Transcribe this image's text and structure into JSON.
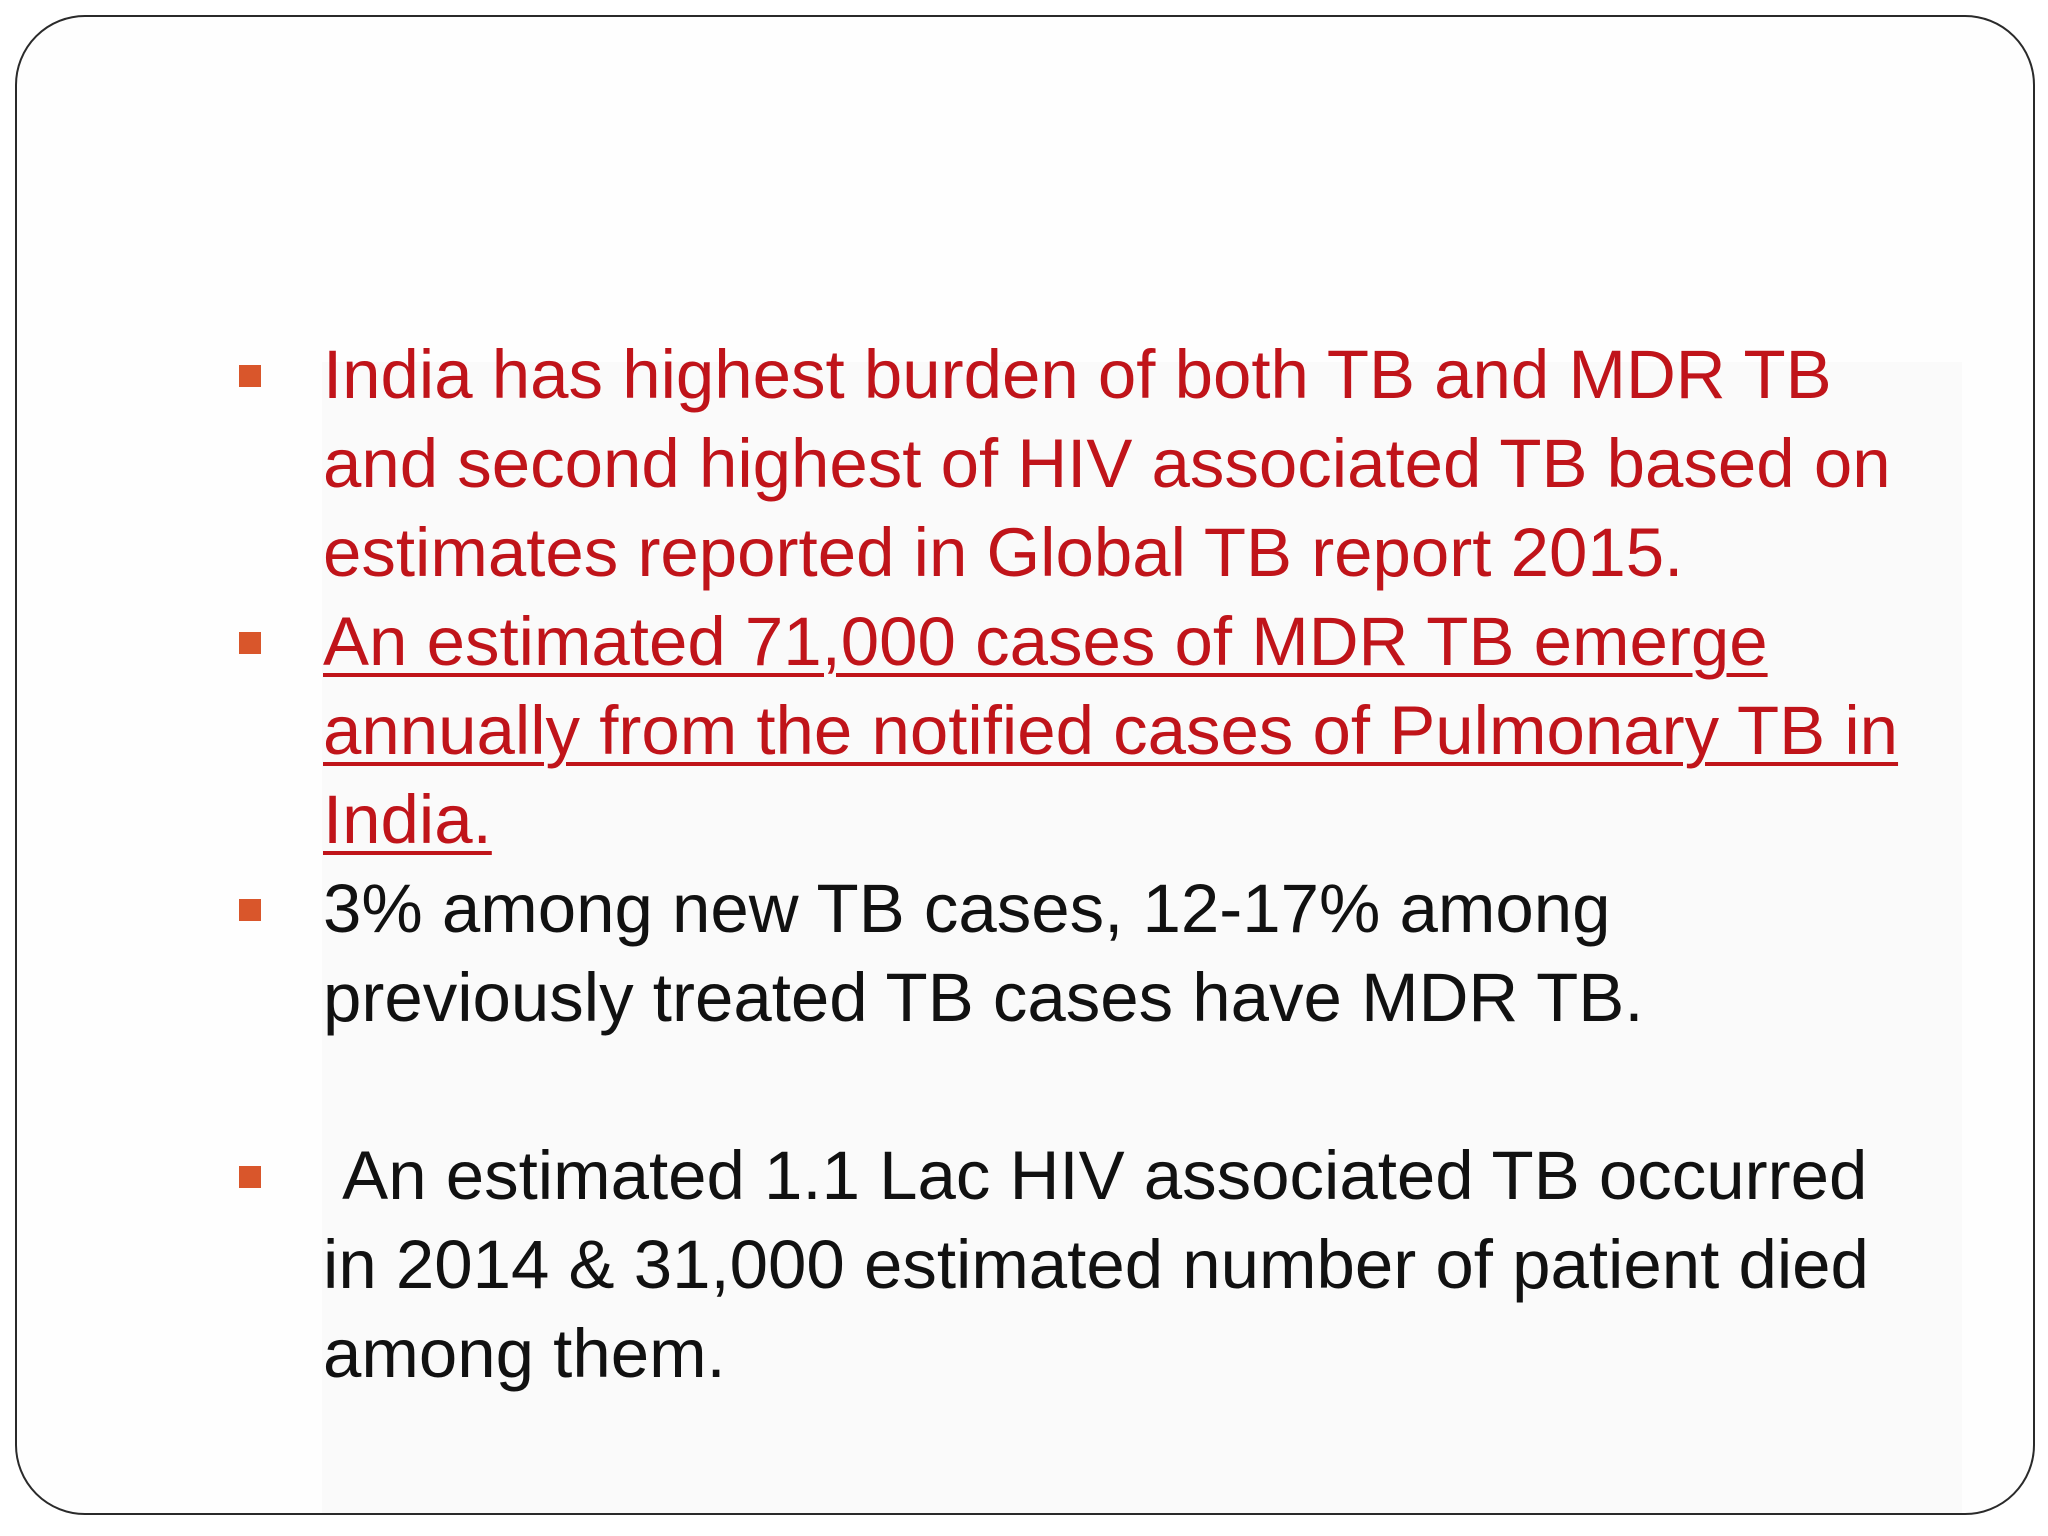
{
  "slide": {
    "bullets": [
      {
        "text": "India has highest burden of both TB and MDR TB and second highest of HIV associated TB based on estimates reported in Global TB report 2015.",
        "color": "#c0141a",
        "underline": false
      },
      {
        "text": "An estimated 71,000 cases of MDR TB emerge annually from the notified cases of Pulmonary TB in India.",
        "color": "#c0141a",
        "underline": true
      },
      {
        "text": "3% among new TB cases, 12-17% among previously treated TB cases have MDR TB.",
        "color": "#111111",
        "underline": false
      },
      {
        "text": " An estimated 1.1 Lac HIV associated TB occurred in 2014 & 31,000 estimated number of patient died among them.",
        "color": "#111111",
        "underline": false
      }
    ],
    "bullet_marker_color": "#d9562b",
    "border_color": "#2a2a2a"
  }
}
